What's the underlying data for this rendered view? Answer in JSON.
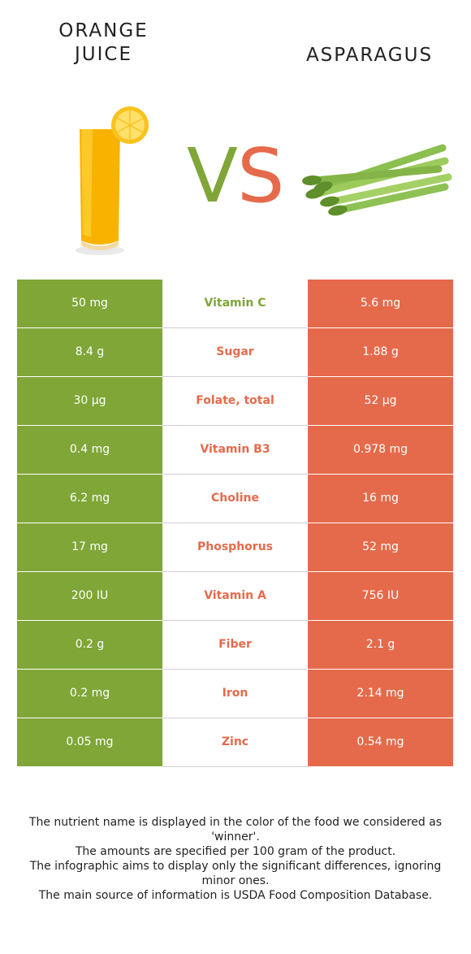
{
  "header": {
    "left_food": "ORANGE\nJUICE",
    "right_food": "ASPARAGUS",
    "vs_v": "V",
    "vs_s": "S"
  },
  "colors": {
    "left_accent": "#7fa637",
    "right_accent": "#e56a4b"
  },
  "rows": [
    {
      "left": "50 mg",
      "nutrient": "Vitamin C",
      "right": "5.6 mg",
      "winner": "left"
    },
    {
      "left": "8.4 g",
      "nutrient": "Sugar",
      "right": "1.88 g",
      "winner": "right"
    },
    {
      "left": "30 µg",
      "nutrient": "Folate, total",
      "right": "52 µg",
      "winner": "right"
    },
    {
      "left": "0.4 mg",
      "nutrient": "Vitamin B3",
      "right": "0.978 mg",
      "winner": "right"
    },
    {
      "left": "6.2 mg",
      "nutrient": "Choline",
      "right": "16 mg",
      "winner": "right"
    },
    {
      "left": "17 mg",
      "nutrient": "Phosphorus",
      "right": "52 mg",
      "winner": "right"
    },
    {
      "left": "200 IU",
      "nutrient": "Vitamin A",
      "right": "756 IU",
      "winner": "right"
    },
    {
      "left": "0.2 g",
      "nutrient": "Fiber",
      "right": "2.1 g",
      "winner": "right"
    },
    {
      "left": "0.2 mg",
      "nutrient": "Iron",
      "right": "2.14 mg",
      "winner": "right"
    },
    {
      "left": "0.05 mg",
      "nutrient": "Zinc",
      "right": "0.54 mg",
      "winner": "right"
    }
  ],
  "footer": {
    "line1": "The nutrient name is displayed in the color of the food we considered as 'winner'.",
    "line2": "The amounts are specified per 100 gram of the product.",
    "line3": "The infographic aims to display only the significant differences, ignoring minor ones.",
    "line4": "The main source of information is USDA Food Composition Database."
  }
}
